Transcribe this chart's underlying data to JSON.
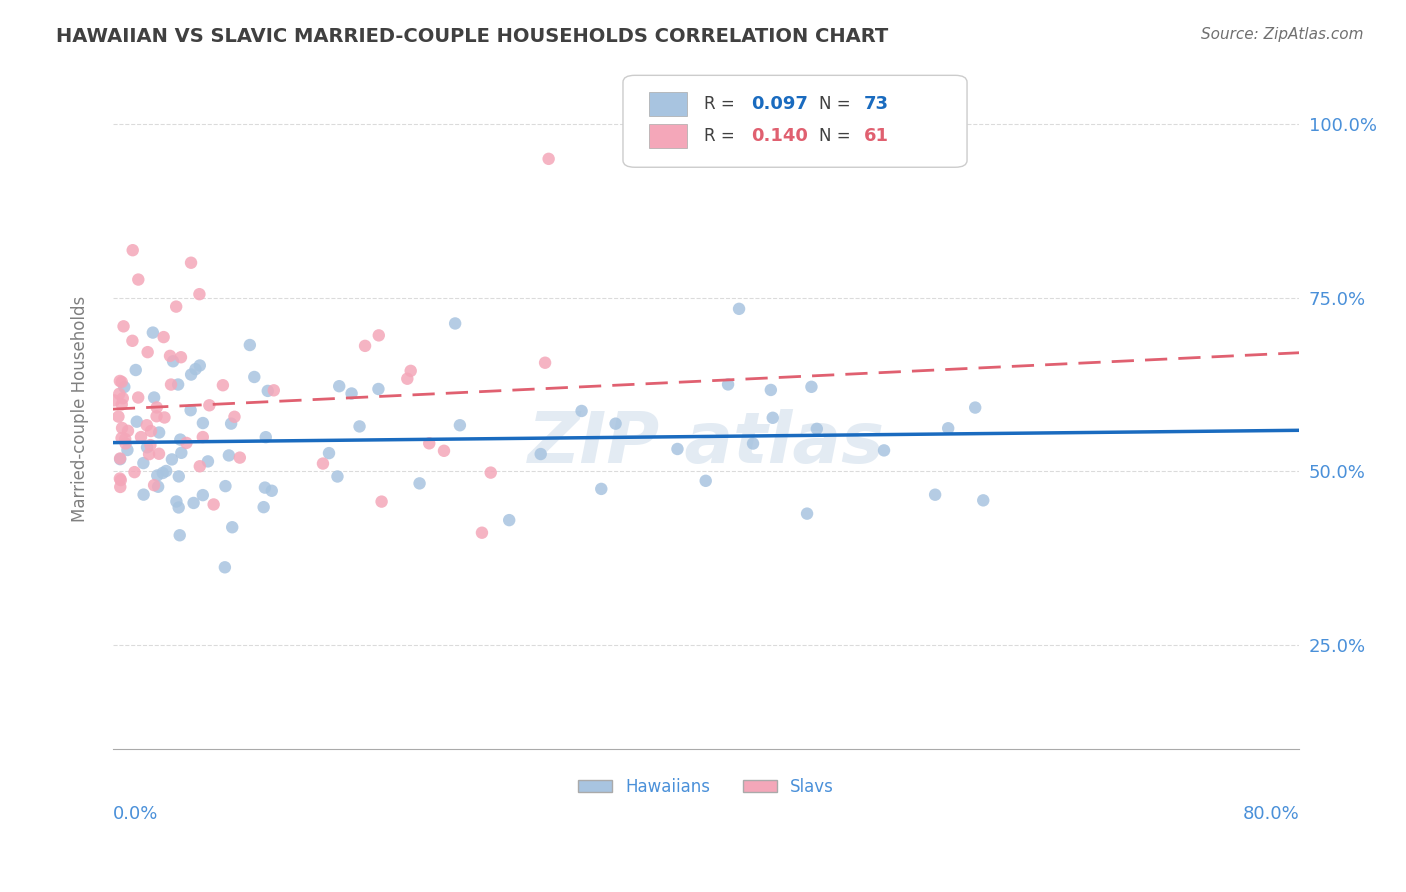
{
  "title": "HAWAIIAN VS SLAVIC MARRIED-COUPLE HOUSEHOLDS CORRELATION CHART",
  "source": "Source: ZipAtlas.com",
  "ylabel": "Married-couple Households",
  "xmin": 0.0,
  "xmax": 80.0,
  "ymin": 10.0,
  "ymax": 108.0,
  "hawaiian_R": 0.097,
  "hawaiian_N": 73,
  "slavic_R": 0.14,
  "slavic_N": 61,
  "hawaiian_color": "#a8c4e0",
  "slavic_color": "#f4a7b9",
  "hawaiian_line_color": "#1a6bbf",
  "slavic_line_color": "#e06070",
  "background_color": "#ffffff",
  "grid_color": "#cccccc",
  "title_color": "#404040",
  "axis_label_color": "#4a90d9",
  "watermark_color": "#c8d8e8"
}
